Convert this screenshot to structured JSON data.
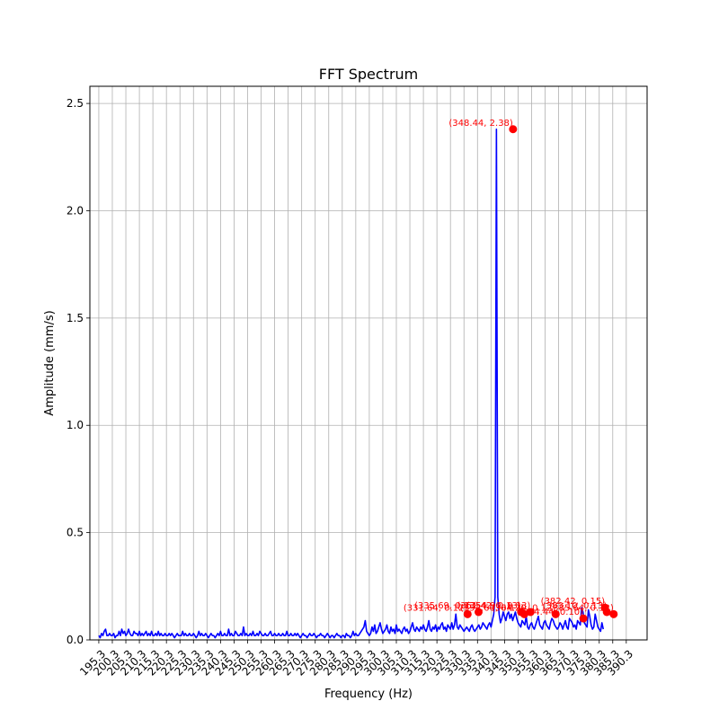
{
  "chart_data": {
    "type": "line",
    "title": "FFT Spectrum",
    "xlabel": "Frequency (Hz)",
    "ylabel": "Amplitude (mm/s)",
    "xlim": [
      192,
      398
    ],
    "ylim": [
      0,
      2.58
    ],
    "grid": true,
    "line_color": "#0000ff",
    "peak_color": "#ff0000",
    "x_ticks": [
      195.3,
      200.3,
      205.3,
      210.3,
      215.3,
      220.3,
      225.3,
      230.3,
      235.3,
      240.3,
      245.3,
      250.3,
      255.3,
      260.3,
      265.3,
      270.3,
      275.3,
      280.3,
      285.3,
      290.3,
      295.3,
      300.3,
      305.3,
      310.3,
      315.3,
      320.3,
      325.3,
      330.3,
      335.3,
      340.3,
      345.3,
      350.3,
      355.3,
      360.3,
      365.3,
      370.3,
      375.3,
      380.3,
      385.3,
      390.3
    ],
    "x_tick_labels": [
      "195.3",
      "200.3",
      "205.3",
      "210.3",
      "215.3",
      "220.3",
      "225.3",
      "230.3",
      "235.3",
      "240.3",
      "245.3",
      "250.3",
      "255.3",
      "260.3",
      "265.3",
      "270.3",
      "275.3",
      "280.3",
      "285.3",
      "290.3",
      "295.3",
      "300.3",
      "305.3",
      "310.3",
      "315.3",
      "320.3",
      "325.3",
      "330.3",
      "335.3",
      "340.3",
      "345.3",
      "350.3",
      "355.3",
      "360.3",
      "365.3",
      "370.3",
      "375.3",
      "380.3",
      "385.3",
      "390.3"
    ],
    "y_ticks": [
      0.0,
      0.5,
      1.0,
      1.5,
      2.0,
      2.5
    ],
    "y_tick_labels": [
      "0.0",
      "0.5",
      "1.0",
      "1.5",
      "2.0",
      "2.5"
    ],
    "series": [
      {
        "name": "spectrum",
        "x_start": 195.3,
        "x_step": 0.5,
        "values": [
          0.02,
          0.01,
          0.03,
          0.02,
          0.04,
          0.05,
          0.02,
          0.02,
          0.03,
          0.02,
          0.02,
          0.03,
          0.01,
          0.02,
          0.02,
          0.04,
          0.02,
          0.05,
          0.03,
          0.04,
          0.02,
          0.03,
          0.05,
          0.03,
          0.02,
          0.02,
          0.04,
          0.03,
          0.03,
          0.02,
          0.04,
          0.02,
          0.03,
          0.02,
          0.03,
          0.04,
          0.02,
          0.03,
          0.02,
          0.04,
          0.02,
          0.02,
          0.03,
          0.02,
          0.04,
          0.02,
          0.03,
          0.02,
          0.02,
          0.03,
          0.02,
          0.02,
          0.03,
          0.02,
          0.03,
          0.02,
          0.01,
          0.02,
          0.03,
          0.02,
          0.02,
          0.02,
          0.04,
          0.02,
          0.03,
          0.02,
          0.02,
          0.03,
          0.02,
          0.02,
          0.03,
          0.02,
          0.01,
          0.02,
          0.04,
          0.02,
          0.03,
          0.02,
          0.02,
          0.03,
          0.02,
          0.01,
          0.02,
          0.03,
          0.02,
          0.02,
          0.01,
          0.02,
          0.03,
          0.02,
          0.04,
          0.02,
          0.02,
          0.03,
          0.02,
          0.02,
          0.05,
          0.02,
          0.03,
          0.02,
          0.02,
          0.04,
          0.03,
          0.02,
          0.02,
          0.03,
          0.02,
          0.06,
          0.02,
          0.03,
          0.02,
          0.02,
          0.03,
          0.02,
          0.04,
          0.02,
          0.02,
          0.03,
          0.02,
          0.04,
          0.03,
          0.02,
          0.02,
          0.03,
          0.02,
          0.02,
          0.03,
          0.04,
          0.02,
          0.02,
          0.03,
          0.02,
          0.02,
          0.03,
          0.02,
          0.02,
          0.03,
          0.02,
          0.02,
          0.04,
          0.02,
          0.02,
          0.03,
          0.02,
          0.02,
          0.03,
          0.02,
          0.03,
          0.02,
          0.01,
          0.02,
          0.03,
          0.02,
          0.02,
          0.01,
          0.02,
          0.03,
          0.02,
          0.02,
          0.03,
          0.02,
          0.01,
          0.02,
          0.02,
          0.03,
          0.02,
          0.02,
          0.01,
          0.02,
          0.03,
          0.02,
          0.01,
          0.02,
          0.02,
          0.01,
          0.02,
          0.03,
          0.02,
          0.02,
          0.01,
          0.02,
          0.02,
          0.01,
          0.03,
          0.02,
          0.02,
          0.01,
          0.02,
          0.04,
          0.02,
          0.03,
          0.02,
          0.02,
          0.03,
          0.04,
          0.05,
          0.06,
          0.09,
          0.04,
          0.03,
          0.02,
          0.03,
          0.06,
          0.04,
          0.07,
          0.03,
          0.04,
          0.06,
          0.08,
          0.05,
          0.03,
          0.04,
          0.05,
          0.07,
          0.04,
          0.03,
          0.06,
          0.04,
          0.05,
          0.03,
          0.07,
          0.04,
          0.05,
          0.04,
          0.03,
          0.05,
          0.06,
          0.04,
          0.05,
          0.03,
          0.04,
          0.06,
          0.08,
          0.05,
          0.04,
          0.06,
          0.05,
          0.04,
          0.06,
          0.05,
          0.07,
          0.05,
          0.04,
          0.06,
          0.09,
          0.05,
          0.04,
          0.06,
          0.05,
          0.07,
          0.04,
          0.06,
          0.05,
          0.07,
          0.08,
          0.05,
          0.06,
          0.04,
          0.07,
          0.06,
          0.05,
          0.08,
          0.05,
          0.07,
          0.12,
          0.06,
          0.05,
          0.07,
          0.06,
          0.05,
          0.04,
          0.05,
          0.06,
          0.05,
          0.04,
          0.06,
          0.07,
          0.05,
          0.04,
          0.05,
          0.06,
          0.07,
          0.05,
          0.06,
          0.08,
          0.07,
          0.06,
          0.05,
          0.07,
          0.08,
          0.06,
          0.09,
          0.12,
          0.2,
          2.38,
          0.2,
          0.12,
          0.08,
          0.1,
          0.13,
          0.11,
          0.09,
          0.12,
          0.13,
          0.1,
          0.12,
          0.09,
          0.11,
          0.13,
          0.1,
          0.08,
          0.07,
          0.06,
          0.09,
          0.08,
          0.07,
          0.11,
          0.06,
          0.05,
          0.07,
          0.08,
          0.06,
          0.05,
          0.07,
          0.09,
          0.11,
          0.07,
          0.06,
          0.05,
          0.08,
          0.09,
          0.07,
          0.06,
          0.05,
          0.08,
          0.1,
          0.09,
          0.07,
          0.06,
          0.05,
          0.06,
          0.08,
          0.07,
          0.05,
          0.07,
          0.09,
          0.06,
          0.05,
          0.1,
          0.09,
          0.08,
          0.06,
          0.07,
          0.05,
          0.09,
          0.08,
          0.07,
          0.15,
          0.13,
          0.08,
          0.07,
          0.06,
          0.14,
          0.11,
          0.07,
          0.05,
          0.06,
          0.12,
          0.09,
          0.06,
          0.05,
          0.04,
          0.08,
          0.05
        ]
      }
    ],
    "peaks": [
      {
        "x": 348.44,
        "y": 2.38,
        "label": "(348.44, 2.38)"
      },
      {
        "x": 331.64,
        "y": 0.12,
        "label": "(331.64, 0.12)"
      },
      {
        "x": 335.69,
        "y": 0.13,
        "label": "(335.69, 0.13)"
      },
      {
        "x": 351.42,
        "y": 0.13,
        "label": "(351.42, 0.13)"
      },
      {
        "x": 352.6,
        "y": 0.12,
        "label": "(352.60, 0.12)"
      },
      {
        "x": 354.9,
        "y": 0.13,
        "label": "(354.90, 0.13)"
      },
      {
        "x": 364.2,
        "y": 0.12,
        "label": "(364.20, 0.12)"
      },
      {
        "x": 374.44,
        "y": 0.1,
        "label": "(374.44, 0.10)"
      },
      {
        "x": 382.42,
        "y": 0.15,
        "label": "(382.42, 0.15)"
      },
      {
        "x": 383.1,
        "y": 0.13,
        "label": "(383.10, 0.13)"
      },
      {
        "x": 385.64,
        "y": 0.12,
        "label": "(385.64, 0.12)"
      }
    ]
  }
}
